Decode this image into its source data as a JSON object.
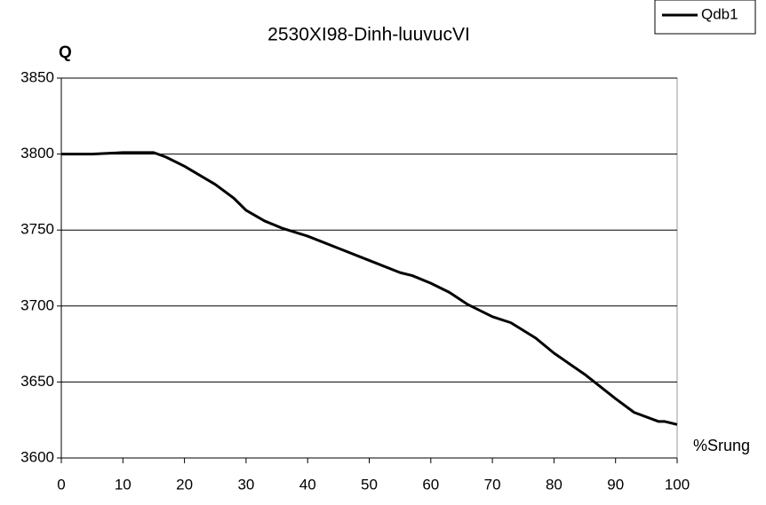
{
  "chart_data": {
    "type": "line",
    "title": "2530XI98-Dinh-luuvucVI",
    "y_label": "Q",
    "x_label": "%Srung",
    "x": [
      0,
      5,
      10,
      15,
      17,
      20,
      25,
      28,
      30,
      33,
      36,
      40,
      45,
      50,
      55,
      57,
      60,
      63,
      66,
      70,
      73,
      77,
      80,
      85,
      90,
      93,
      97,
      98,
      100
    ],
    "series": [
      {
        "name": "Qdb1",
        "color": "#000000",
        "values": [
          3800,
          3800,
          3801,
          3801,
          3798,
          3792,
          3780,
          3771,
          3763,
          3756,
          3751,
          3746,
          3738,
          3730,
          3722,
          3720,
          3715,
          3709,
          3701,
          3693,
          3689,
          3679,
          3669,
          3655,
          3639,
          3630,
          3624,
          3624,
          3622
        ]
      }
    ],
    "xlim": [
      0,
      100
    ],
    "xticks": [
      0,
      10,
      20,
      30,
      40,
      50,
      60,
      70,
      80,
      90,
      100
    ],
    "ylim": [
      3600,
      3850
    ],
    "yticks": [
      3600,
      3650,
      3700,
      3750,
      3800,
      3850
    ],
    "grid": true,
    "legend": "top-right"
  }
}
